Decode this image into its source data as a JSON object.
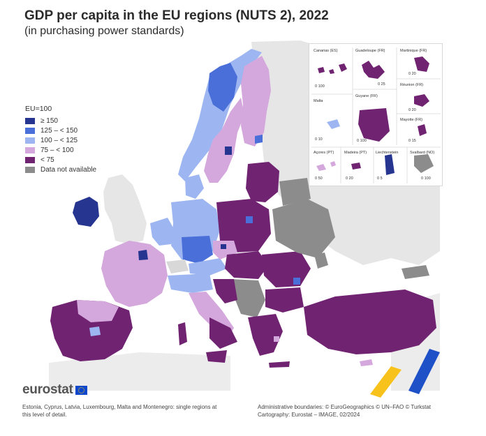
{
  "title": "GDP per capita in the EU regions (NUTS 2), 2022",
  "subtitle": "(in purchasing power standards)",
  "legend": {
    "title": "EU=100",
    "items": [
      {
        "label": "≥ 150",
        "color": "#26358f"
      },
      {
        "label": "125 – < 150",
        "color": "#4a6fd8"
      },
      {
        "label": "100 – < 125",
        "color": "#9db6f2"
      },
      {
        "label": "75 – < 100",
        "color": "#d4a8dc"
      },
      {
        "label": "< 75",
        "color": "#702371"
      },
      {
        "label": "Data not available",
        "color": "#8c8c8c"
      }
    ]
  },
  "insets": {
    "canarias": "Canarias (ES)",
    "guadeloupe": "Guadeloupe (FR)",
    "martinique": "Martinique (FR)",
    "reunion": "Réunion (FR)",
    "malta": "Malta",
    "guyane": "Guyane (FR)",
    "mayotte": "Mayotte (FR)",
    "acores": "Açores (PT)",
    "madeira": "Madeira (PT)",
    "liechtenstein": "Liechtenstein",
    "svalbard": "Svalbard (NO)",
    "scales": {
      "canarias": "0  100",
      "guadeloupe": "0  25",
      "martinique": "0  20",
      "reunion": "0  20",
      "malta": "0  10",
      "guyane": "0  100",
      "mayotte": "0  15",
      "acores": "0  50",
      "madeira": "0  20",
      "liechtenstein": "0  5",
      "svalbard": "0 100"
    }
  },
  "logo": "eurostat",
  "footer": {
    "left_line1": "Estonia, Cyprus, Latvia, Luxembourg, Malta and Montenegro: single regions at",
    "left_line2": "this level of detail.",
    "right_line1": "Administrative boundaries: © EuroGeographics © UN–FAO © Turkstat",
    "right_line2": "Cartography: Eurostat – IMAGE, 02/2024"
  }
}
